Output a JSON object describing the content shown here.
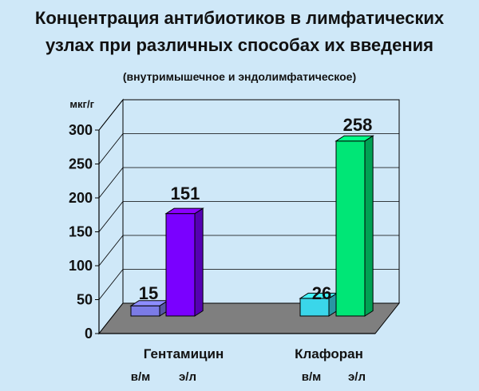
{
  "chart_data": {
    "type": "bar",
    "title": [
      "Концентрация антибиотиков в лимфатических",
      "узлах при различных  способах  их введения"
    ],
    "subtitle": "(внутримышечное и эндолимфатическое)",
    "ylabel": "мкг/г",
    "ylim": [
      0,
      300
    ],
    "yticks": [
      "0",
      "50",
      "100",
      "150",
      "200",
      "250",
      "300"
    ],
    "grid": true,
    "groups": [
      {
        "name": "Гентамицин",
        "bars": [
          {
            "label": "в/м",
            "value": 15,
            "value_label": "15",
            "color": "#7b7be6"
          },
          {
            "label": "э/л",
            "value": 151,
            "value_label": "151",
            "color": "#7a00ff"
          }
        ]
      },
      {
        "name": "Клафоран",
        "bars": [
          {
            "label": "в/м",
            "value": 26,
            "value_label": "26",
            "color": "#3ad6ea"
          },
          {
            "label": "э/л",
            "value": 258,
            "value_label": "258",
            "color": "#00e676"
          }
        ]
      }
    ]
  },
  "colors": {
    "background": "#cfe8f8",
    "floor": "#7f7f7f",
    "wall": "#cfe8f8"
  }
}
